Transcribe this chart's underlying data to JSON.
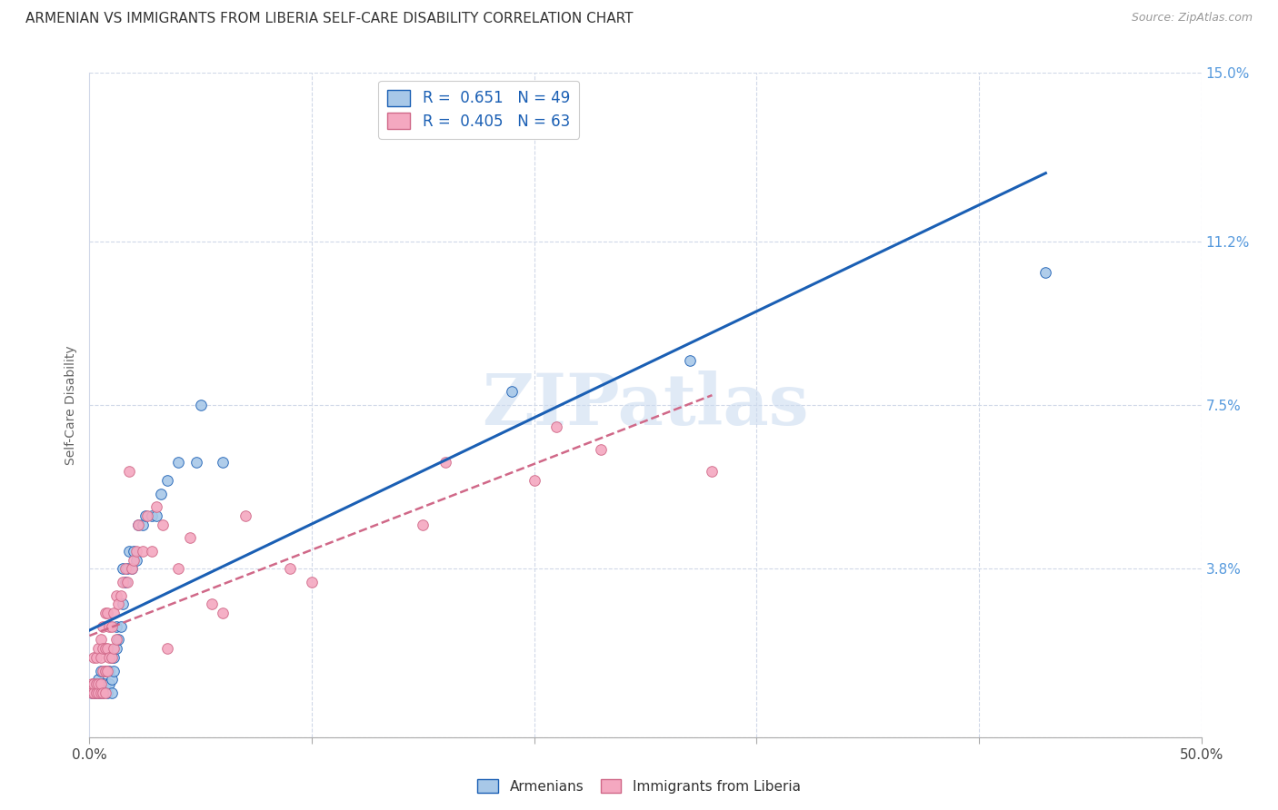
{
  "title": "ARMENIAN VS IMMIGRANTS FROM LIBERIA SELF-CARE DISABILITY CORRELATION CHART",
  "source": "Source: ZipAtlas.com",
  "ylabel": "Self-Care Disability",
  "ytick_labels": [
    "",
    "3.8%",
    "7.5%",
    "11.2%",
    "15.0%"
  ],
  "xlim": [
    0.0,
    0.5
  ],
  "ylim": [
    0.0,
    0.15
  ],
  "color_armenian": "#a8c8e8",
  "color_liberia": "#f4a8c0",
  "line_color_armenian": "#1a5fb4",
  "line_color_liberia": "#d06888",
  "watermark": "ZIPatlas",
  "armenian_x": [
    0.001,
    0.002,
    0.002,
    0.003,
    0.003,
    0.004,
    0.004,
    0.005,
    0.005,
    0.005,
    0.006,
    0.006,
    0.007,
    0.007,
    0.008,
    0.008,
    0.009,
    0.009,
    0.01,
    0.01,
    0.01,
    0.011,
    0.011,
    0.012,
    0.012,
    0.013,
    0.014,
    0.015,
    0.015,
    0.016,
    0.017,
    0.018,
    0.019,
    0.02,
    0.021,
    0.022,
    0.024,
    0.025,
    0.028,
    0.03,
    0.032,
    0.035,
    0.04,
    0.048,
    0.05,
    0.06,
    0.19,
    0.27,
    0.43
  ],
  "armenian_y": [
    0.01,
    0.01,
    0.012,
    0.01,
    0.012,
    0.01,
    0.013,
    0.01,
    0.012,
    0.015,
    0.01,
    0.012,
    0.012,
    0.015,
    0.01,
    0.015,
    0.012,
    0.015,
    0.01,
    0.013,
    0.018,
    0.015,
    0.018,
    0.02,
    0.025,
    0.022,
    0.025,
    0.03,
    0.038,
    0.035,
    0.038,
    0.042,
    0.038,
    0.042,
    0.04,
    0.048,
    0.048,
    0.05,
    0.05,
    0.05,
    0.055,
    0.058,
    0.062,
    0.062,
    0.075,
    0.062,
    0.078,
    0.085,
    0.105
  ],
  "liberia_x": [
    0.001,
    0.001,
    0.002,
    0.002,
    0.002,
    0.003,
    0.003,
    0.003,
    0.004,
    0.004,
    0.004,
    0.005,
    0.005,
    0.005,
    0.005,
    0.006,
    0.006,
    0.006,
    0.006,
    0.007,
    0.007,
    0.007,
    0.007,
    0.008,
    0.008,
    0.008,
    0.009,
    0.009,
    0.01,
    0.01,
    0.011,
    0.011,
    0.012,
    0.012,
    0.013,
    0.014,
    0.015,
    0.016,
    0.017,
    0.018,
    0.019,
    0.02,
    0.021,
    0.022,
    0.024,
    0.026,
    0.028,
    0.03,
    0.033,
    0.035,
    0.04,
    0.045,
    0.055,
    0.06,
    0.07,
    0.09,
    0.1,
    0.15,
    0.16,
    0.2,
    0.21,
    0.23,
    0.28
  ],
  "liberia_y": [
    0.01,
    0.012,
    0.01,
    0.012,
    0.018,
    0.01,
    0.012,
    0.018,
    0.01,
    0.012,
    0.02,
    0.01,
    0.012,
    0.018,
    0.022,
    0.01,
    0.015,
    0.02,
    0.025,
    0.01,
    0.015,
    0.02,
    0.028,
    0.015,
    0.02,
    0.028,
    0.018,
    0.025,
    0.018,
    0.025,
    0.02,
    0.028,
    0.022,
    0.032,
    0.03,
    0.032,
    0.035,
    0.038,
    0.035,
    0.06,
    0.038,
    0.04,
    0.042,
    0.048,
    0.042,
    0.05,
    0.042,
    0.052,
    0.048,
    0.02,
    0.038,
    0.045,
    0.03,
    0.028,
    0.05,
    0.038,
    0.035,
    0.048,
    0.062,
    0.058,
    0.07,
    0.065,
    0.06
  ]
}
